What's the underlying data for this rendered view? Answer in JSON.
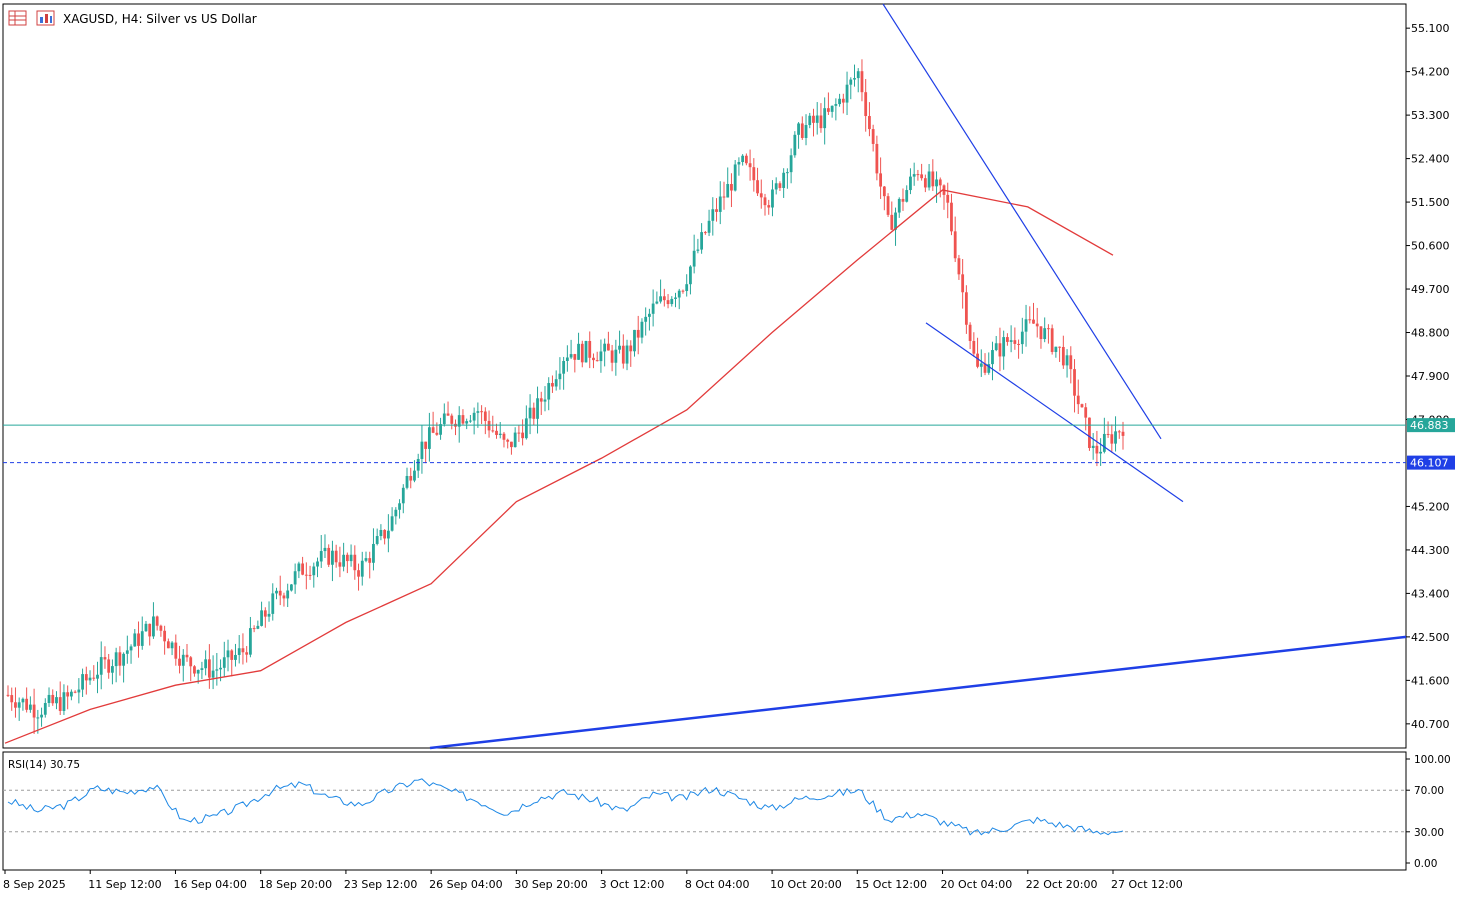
{
  "header": {
    "icon_names": [
      "chart-grid-icon",
      "chart-bars-icon"
    ],
    "title": "XAGUSD, H4:  Silver vs US Dollar"
  },
  "chart_data": [
    {
      "type": "candlestick",
      "symbol": "XAGUSD",
      "timeframe": "H4",
      "title": "XAGUSD, H4:  Silver vs US Dollar",
      "y_ticks": [
        "55.100",
        "54.200",
        "53.300",
        "52.400",
        "51.500",
        "50.600",
        "49.700",
        "48.800",
        "47.900",
        "47.000",
        "45.200",
        "44.300",
        "43.400",
        "42.500",
        "41.600",
        "40.700"
      ],
      "ylim": [
        40.2,
        55.6
      ],
      "x_ticks": [
        "8 Sep 2025",
        "11 Sep 12:00",
        "16 Sep 04:00",
        "18 Sep 20:00",
        "23 Sep 12:00",
        "26 Sep 04:00",
        "30 Sep 20:00",
        "3 Oct 12:00",
        "8 Oct 04:00",
        "10 Oct 20:00",
        "15 Oct 12:00",
        "20 Oct 04:00",
        "22 Oct 20:00",
        "27 Oct 12:00"
      ],
      "current_price": "46.883",
      "current_price_level": 46.883,
      "support_level_label": "46.107",
      "support_level": 46.107,
      "close_path": [
        [
          "8 Sep 2025",
          41.3
        ],
        [
          "9 Sep",
          41.0
        ],
        [
          "10 Sep",
          41.2
        ],
        [
          "11 Sep 12:00",
          41.8
        ],
        [
          "12 Sep",
          42.2
        ],
        [
          "15 Sep",
          42.8
        ],
        [
          "16 Sep 04:00",
          42.0
        ],
        [
          "17 Sep",
          41.8
        ],
        [
          "18 Sep 20:00",
          42.2
        ],
        [
          "19 Sep",
          43.2
        ],
        [
          "22 Sep",
          43.9
        ],
        [
          "23 Sep 12:00",
          44.2
        ],
        [
          "24 Sep",
          43.9
        ],
        [
          "25 Sep",
          44.8
        ],
        [
          "26 Sep 04:00",
          46.4
        ],
        [
          "29 Sep",
          47.0
        ],
        [
          "30 Sep 20:00",
          47.2
        ],
        [
          "1 Oct",
          46.4
        ],
        [
          "2 Oct",
          47.2
        ],
        [
          "3 Oct 12:00",
          48.4
        ],
        [
          "6 Oct",
          48.4
        ],
        [
          "7 Oct",
          48.3
        ],
        [
          "8 Oct 04:00",
          49.3
        ],
        [
          "9 Oct",
          49.8
        ],
        [
          "10 Oct 20:00",
          51.2
        ],
        [
          "13 Oct",
          52.3
        ],
        [
          "14 Oct",
          51.5
        ],
        [
          "15 Oct 12:00",
          53.0
        ],
        [
          "16 Oct",
          53.3
        ],
        [
          "17 Oct",
          54.2
        ],
        [
          "17 Oct close",
          51.0
        ],
        [
          "20 Oct 04:00",
          52.2
        ],
        [
          "21 Oct",
          51.5
        ],
        [
          "21 Oct close",
          48.0
        ],
        [
          "22 Oct 20:00",
          48.6
        ],
        [
          "23 Oct",
          49.0
        ],
        [
          "24 Oct",
          48.3
        ],
        [
          "27 Oct 12:00",
          46.3
        ],
        [
          "27 Oct last",
          46.88
        ]
      ],
      "moving_average": {
        "color": "#e23b3b",
        "values": [
          [
            "8 Sep 2025",
            40.3
          ],
          [
            "11 Sep 12:00",
            41.0
          ],
          [
            "16 Sep 04:00",
            41.5
          ],
          [
            "18 Sep 20:00",
            41.8
          ],
          [
            "23 Sep 12:00",
            42.8
          ],
          [
            "26 Sep 04:00",
            43.6
          ],
          [
            "30 Sep 20:00",
            45.3
          ],
          [
            "3 Oct 12:00",
            46.2
          ],
          [
            "8 Oct 04:00",
            47.2
          ],
          [
            "10 Oct 20:00",
            48.8
          ],
          [
            "15 Oct 12:00",
            50.3
          ],
          [
            "20 Oct 04:00",
            51.75
          ],
          [
            "22 Oct 20:00",
            51.4
          ],
          [
            "27 Oct 12:00",
            50.4
          ]
        ]
      },
      "trendlines": [
        {
          "name": "falling-wedge-upper",
          "color": "#1f3fe6"
        },
        {
          "name": "falling-wedge-lower",
          "color": "#1f3fe6"
        },
        {
          "name": "long-term-support",
          "color": "#1f3fe6"
        }
      ],
      "colors": {
        "bull": "#26a69a",
        "bear": "#ef5350",
        "price_line": "#26a69a",
        "support": "#1f3fe6"
      },
      "grid": false
    },
    {
      "type": "line",
      "title": "RSI(14) 30.75",
      "indicator": "RSI(14)",
      "last_value": 30.75,
      "y_ticks": [
        "100.00",
        "70.00",
        "30.00",
        "0.00"
      ],
      "ylim": [
        0,
        100
      ],
      "levels": [
        70,
        30
      ],
      "color": "#1e88e5",
      "values": [
        [
          "8 Sep 2025",
          60
        ],
        [
          "9 Sep",
          50
        ],
        [
          "10 Sep",
          56
        ],
        [
          "11 Sep 12:00",
          72
        ],
        [
          "12 Sep",
          68
        ],
        [
          "15 Sep",
          74
        ],
        [
          "16 Sep 04:00",
          40
        ],
        [
          "17 Sep",
          44
        ],
        [
          "18 Sep 20:00",
          55
        ],
        [
          "19 Sep",
          70
        ],
        [
          "22 Sep",
          76
        ],
        [
          "23 Sep 12:00",
          62
        ],
        [
          "24 Sep",
          56
        ],
        [
          "25 Sep",
          70
        ],
        [
          "26 Sep 04:00",
          80
        ],
        [
          "29 Sep",
          70
        ],
        [
          "30 Sep 20:00",
          60
        ],
        [
          "1 Oct",
          48
        ],
        [
          "2 Oct",
          62
        ],
        [
          "3 Oct 12:00",
          68
        ],
        [
          "6 Oct",
          60
        ],
        [
          "7 Oct",
          50
        ],
        [
          "8 Oct 04:00",
          66
        ],
        [
          "9 Oct",
          62
        ],
        [
          "10 Oct 20:00",
          72
        ],
        [
          "13 Oct",
          62
        ],
        [
          "14 Oct",
          52
        ],
        [
          "15 Oct 12:00",
          62
        ],
        [
          "16 Oct",
          66
        ],
        [
          "17 Oct",
          70
        ],
        [
          "17 Oct close",
          42
        ],
        [
          "20 Oct 04:00",
          48
        ],
        [
          "21 Oct",
          38
        ],
        [
          "21 Oct close",
          28
        ],
        [
          "22 Oct 20:00",
          34
        ],
        [
          "23 Oct",
          42
        ],
        [
          "24 Oct",
          36
        ],
        [
          "27 Oct 12:00",
          30
        ],
        [
          "27 Oct last",
          30.75
        ]
      ]
    }
  ]
}
